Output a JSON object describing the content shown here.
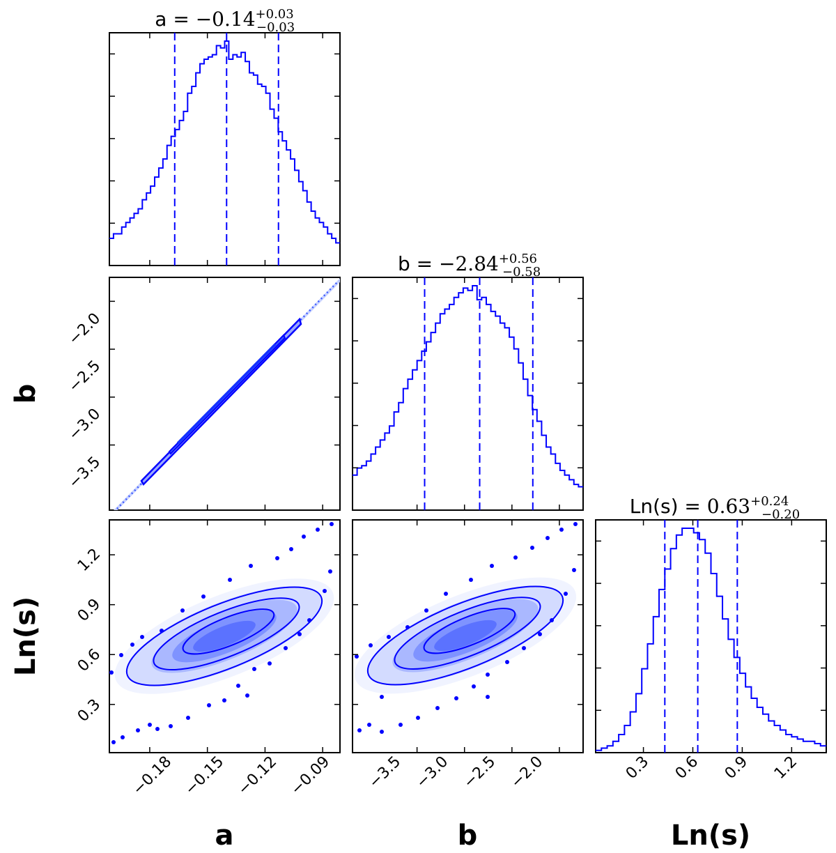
{
  "chart_data": {
    "type": "corner",
    "color": "#0000ff",
    "parameters": [
      {
        "key": "a",
        "label": "a",
        "median": -0.14,
        "plus": "0.03",
        "minus": "0.03",
        "range": [
          -0.201,
          -0.081
        ],
        "quantiles": [
          -0.167,
          -0.14,
          -0.113
        ],
        "ticks": [
          -0.18,
          -0.15,
          -0.12,
          -0.09
        ],
        "tick_labels": [
          "−0.18",
          "−0.15",
          "−0.12",
          "−0.09"
        ]
      },
      {
        "key": "b",
        "label": "b",
        "median": -2.84,
        "plus": "0.56",
        "minus": "0.58",
        "range": [
          -4.18,
          -1.75
        ],
        "quantiles": [
          -3.42,
          -2.84,
          -2.28
        ],
        "ticks": [
          -3.5,
          -3.0,
          -2.5,
          -2.0
        ],
        "tick_labels": [
          "−3.5",
          "−3.0",
          "−2.5",
          "−2.0"
        ]
      },
      {
        "key": "lns",
        "label": "Ln(s)",
        "median": 0.63,
        "plus": "0.24",
        "minus": "0.20",
        "range": [
          0.01,
          1.41
        ],
        "quantiles": [
          0.43,
          0.63,
          0.87
        ],
        "ticks": [
          0.3,
          0.6,
          0.9,
          1.2
        ],
        "tick_labels": [
          "0.3",
          "0.6",
          "0.9",
          "1.2"
        ]
      }
    ],
    "titles": [
      {
        "param": "a",
        "prefix": "a = ",
        "value": "−0.14",
        "sup": "+0.03",
        "sub": "−0.03"
      },
      {
        "param": "b",
        "prefix": "b = ",
        "value": "−2.84",
        "sup": "+0.56",
        "sub": "−0.58"
      },
      {
        "param": "lns",
        "prefix": "Ln(s) = ",
        "value": "0.63",
        "sup": "+0.24",
        "sub": "−0.20"
      }
    ],
    "histograms": {
      "a": [
        0.12,
        0.14,
        0.14,
        0.17,
        0.19,
        0.21,
        0.23,
        0.25,
        0.29,
        0.32,
        0.35,
        0.39,
        0.43,
        0.47,
        0.53,
        0.57,
        0.6,
        0.64,
        0.68,
        0.76,
        0.79,
        0.85,
        0.89,
        0.91,
        0.92,
        0.93,
        0.97,
        0.96,
        0.99,
        0.91,
        0.93,
        0.92,
        0.94,
        0.9,
        0.85,
        0.84,
        0.8,
        0.79,
        0.76,
        0.69,
        0.65,
        0.59,
        0.55,
        0.51,
        0.47,
        0.42,
        0.37,
        0.33,
        0.28,
        0.24,
        0.21,
        0.19,
        0.17,
        0.14,
        0.12,
        0.1
      ],
      "b": [
        0.15,
        0.18,
        0.19,
        0.21,
        0.24,
        0.27,
        0.3,
        0.33,
        0.36,
        0.42,
        0.46,
        0.52,
        0.56,
        0.6,
        0.64,
        0.68,
        0.72,
        0.76,
        0.8,
        0.84,
        0.86,
        0.88,
        0.91,
        0.93,
        0.95,
        0.94,
        0.96,
        0.9,
        0.91,
        0.88,
        0.85,
        0.83,
        0.8,
        0.78,
        0.74,
        0.69,
        0.63,
        0.56,
        0.49,
        0.43,
        0.38,
        0.32,
        0.27,
        0.24,
        0.2,
        0.17,
        0.15,
        0.13,
        0.11,
        0.1
      ],
      "lns": [
        0.01,
        0.02,
        0.03,
        0.05,
        0.08,
        0.12,
        0.18,
        0.26,
        0.37,
        0.48,
        0.6,
        0.72,
        0.81,
        0.9,
        0.96,
        0.99,
        0.99,
        0.97,
        0.94,
        0.88,
        0.79,
        0.69,
        0.59,
        0.5,
        0.42,
        0.35,
        0.29,
        0.24,
        0.2,
        0.17,
        0.14,
        0.12,
        0.1,
        0.08,
        0.07,
        0.06,
        0.05,
        0.05,
        0.04,
        0.03
      ]
    },
    "contour_levels": [
      "1-sigma",
      "2-sigma",
      "3-sigma"
    ],
    "y_axis_labels": [
      "b",
      "Ln(s)"
    ],
    "x_axis_labels": [
      "a",
      "b",
      "Ln(s)"
    ]
  }
}
